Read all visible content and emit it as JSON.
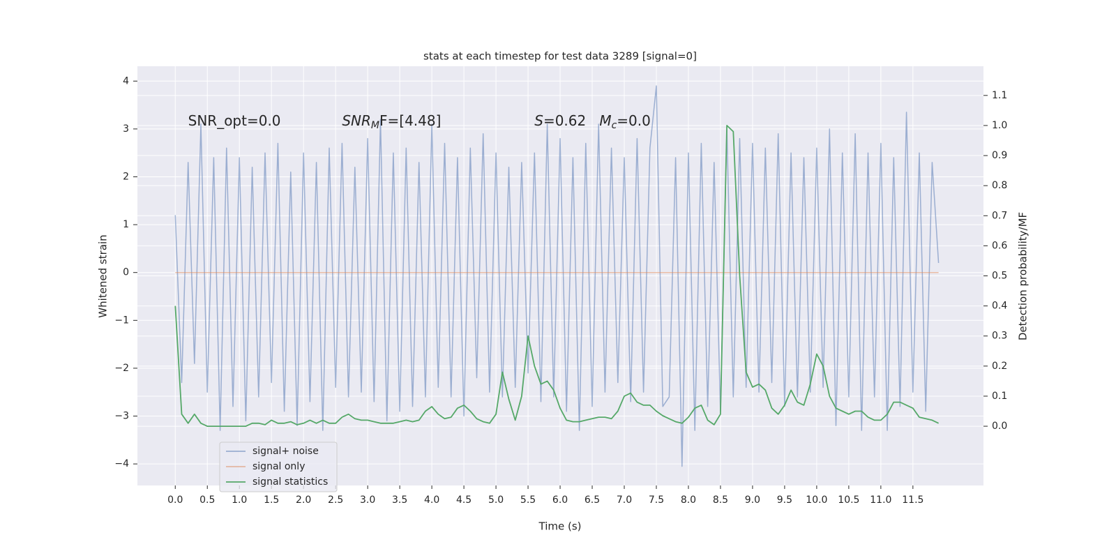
{
  "chart_data": {
    "type": "line",
    "title": "stats at each timestep for test data 3289 [signal=0]",
    "xlabel": "Time (s)",
    "ylabel": "Whitened strain",
    "y2label": "Detection probability/MF",
    "annotations": [
      [
        {
          "text": "SNR_opt=0.0"
        }
      ],
      [
        {
          "text": "SNR",
          "italic": true
        },
        {
          "text": "M",
          "italic": true,
          "sub": true
        },
        {
          "text": "F=[4.48]"
        }
      ],
      [
        {
          "text": "S",
          "italic": true
        },
        {
          "text": "=0.62   "
        },
        {
          "text": "M",
          "italic": true
        },
        {
          "text": "c",
          "italic": true,
          "sub": true
        },
        {
          "text": "=0.0"
        }
      ]
    ],
    "x": [
      0,
      0.1,
      0.2,
      0.3,
      0.4,
      0.5,
      0.6,
      0.7,
      0.8,
      0.9,
      1,
      1.1,
      1.2,
      1.3,
      1.4,
      1.5,
      1.6,
      1.7,
      1.8,
      1.9,
      2,
      2.1,
      2.2,
      2.3,
      2.4,
      2.5,
      2.6,
      2.7,
      2.8,
      2.9,
      3,
      3.1,
      3.2,
      3.3,
      3.4,
      3.5,
      3.6,
      3.7,
      3.8,
      3.9,
      4,
      4.1,
      4.2,
      4.3,
      4.4,
      4.5,
      4.6,
      4.7,
      4.8,
      4.9,
      5,
      5.1,
      5.2,
      5.3,
      5.4,
      5.5,
      5.6,
      5.7,
      5.8,
      5.9,
      6,
      6.1,
      6.2,
      6.3,
      6.4,
      6.5,
      6.6,
      6.7,
      6.8,
      6.9,
      7,
      7.1,
      7.2,
      7.3,
      7.4,
      7.5,
      7.6,
      7.7,
      7.8,
      7.9,
      8,
      8.1,
      8.2,
      8.3,
      8.4,
      8.5,
      8.6,
      8.7,
      8.8,
      8.9,
      9,
      9.1,
      9.2,
      9.3,
      9.4,
      9.5,
      9.6,
      9.7,
      9.8,
      9.9,
      10,
      10.1,
      10.2,
      10.3,
      10.4,
      10.5,
      10.6,
      10.7,
      10.8,
      10.9,
      11,
      11.1,
      11.2,
      11.3,
      11.4,
      11.5,
      11.6,
      11.7,
      11.8,
      11.9
    ],
    "series": [
      {
        "name": "signal+ noise",
        "color": "#4c72b0",
        "values": [
          1.2,
          -2.3,
          2.3,
          -1.9,
          3.1,
          -2.5,
          2.4,
          -3.3,
          2.6,
          -2.8,
          2.4,
          -3.1,
          2.2,
          -2.6,
          2.5,
          -2.3,
          2.7,
          -2.9,
          2.1,
          -3.2,
          2.5,
          -2.7,
          2.3,
          -3.3,
          2.6,
          -2.4,
          2.7,
          -2.6,
          2.2,
          -2.5,
          2.8,
          -2.7,
          3.2,
          -3.1,
          2.5,
          -2.9,
          2.6,
          -2.8,
          2.3,
          -2.6,
          3.1,
          -2.4,
          2.7,
          -2.6,
          2.4,
          -3.0,
          2.6,
          -2.2,
          2.9,
          -2.5,
          2.5,
          -2.6,
          2.2,
          -2.4,
          2.3,
          -2.1,
          2.5,
          -2.7,
          3.1,
          -2.6,
          2.8,
          -2.9,
          2.4,
          -3.3,
          2.7,
          -2.8,
          3.1,
          -2.5,
          2.6,
          -2.3,
          2.4,
          -2.7,
          2.8,
          -2.5,
          2.6,
          3.9,
          -2.8,
          -2.6,
          2.4,
          -4.05,
          2.5,
          -3.3,
          2.7,
          -2.8,
          2.3,
          -2.9,
          3.0,
          -2.6,
          2.8,
          -2.4,
          2.7,
          -2.5,
          2.6,
          -2.3,
          2.9,
          -2.8,
          2.5,
          -2.6,
          2.4,
          -2.5,
          2.6,
          -2.4,
          3.0,
          -3.2,
          2.5,
          -2.6,
          2.9,
          -3.3,
          2.5,
          -2.6,
          2.7,
          -3.3,
          2.4,
          -2.8,
          3.35,
          -2.5,
          2.5,
          -2.9,
          2.3,
          0.2
        ]
      },
      {
        "name": "signal only",
        "color": "#dd8452",
        "values": [
          0,
          0,
          0,
          0,
          0,
          0,
          0,
          0,
          0,
          0,
          0,
          0,
          0,
          0,
          0,
          0,
          0,
          0,
          0,
          0,
          0,
          0,
          0,
          0,
          0,
          0,
          0,
          0,
          0,
          0,
          0,
          0,
          0,
          0,
          0,
          0,
          0,
          0,
          0,
          0,
          0,
          0,
          0,
          0,
          0,
          0,
          0,
          0,
          0,
          0,
          0,
          0,
          0,
          0,
          0,
          0,
          0,
          0,
          0,
          0,
          0,
          0,
          0,
          0,
          0,
          0,
          0,
          0,
          0,
          0,
          0,
          0,
          0,
          0,
          0,
          0,
          0,
          0,
          0,
          0,
          0,
          0,
          0,
          0,
          0,
          0,
          0,
          0,
          0,
          0,
          0,
          0,
          0,
          0,
          0,
          0,
          0,
          0,
          0,
          0,
          0,
          0,
          0,
          0,
          0,
          0,
          0,
          0,
          0,
          0,
          0,
          0,
          0,
          0,
          0,
          0,
          0,
          0,
          0,
          0
        ]
      },
      {
        "name": "signal statistics",
        "color": "#55a868",
        "axis": "y2",
        "values": [
          0.4,
          0.04,
          0.01,
          0.04,
          0.01,
          0,
          0,
          0,
          0,
          0,
          0,
          0,
          0.01,
          0.01,
          0.005,
          0.02,
          0.01,
          0.01,
          0.015,
          0.005,
          0.01,
          0.02,
          0.01,
          0.02,
          0.01,
          0.01,
          0.03,
          0.04,
          0.025,
          0.02,
          0.02,
          0.015,
          0.01,
          0.01,
          0.01,
          0.015,
          0.02,
          0.015,
          0.02,
          0.05,
          0.065,
          0.04,
          0.025,
          0.03,
          0.06,
          0.07,
          0.05,
          0.025,
          0.015,
          0.01,
          0.04,
          0.18,
          0.09,
          0.02,
          0.1,
          0.3,
          0.2,
          0.14,
          0.15,
          0.12,
          0.06,
          0.02,
          0.015,
          0.015,
          0.02,
          0.025,
          0.03,
          0.03,
          0.025,
          0.05,
          0.1,
          0.11,
          0.08,
          0.07,
          0.07,
          0.05,
          0.035,
          0.025,
          0.015,
          0.01,
          0.03,
          0.06,
          0.07,
          0.02,
          0.005,
          0.04,
          1.0,
          0.98,
          0.5,
          0.18,
          0.13,
          0.14,
          0.12,
          0.06,
          0.04,
          0.07,
          0.12,
          0.08,
          0.07,
          0.14,
          0.24,
          0.2,
          0.1,
          0.06,
          0.05,
          0.04,
          0.05,
          0.05,
          0.03,
          0.02,
          0.02,
          0.04,
          0.08,
          0.08,
          0.07,
          0.06,
          0.03,
          0.025,
          0.02,
          0.01
        ]
      }
    ],
    "xlim": [
      -0.59,
      12.6
    ],
    "xticks": [
      {
        "value": 0,
        "label": "0.0"
      },
      {
        "value": 0.5,
        "label": "0.5"
      },
      {
        "value": 1,
        "label": "1.0"
      },
      {
        "value": 1.5,
        "label": "1.5"
      },
      {
        "value": 2,
        "label": "2.0"
      },
      {
        "value": 2.5,
        "label": "2.5"
      },
      {
        "value": 3,
        "label": "3.0"
      },
      {
        "value": 3.5,
        "label": "3.5"
      },
      {
        "value": 4,
        "label": "4.0"
      },
      {
        "value": 4.5,
        "label": "4.5"
      },
      {
        "value": 5,
        "label": "5.0"
      },
      {
        "value": 5.5,
        "label": "5.5"
      },
      {
        "value": 6,
        "label": "6.0"
      },
      {
        "value": 6.5,
        "label": "6.5"
      },
      {
        "value": 7,
        "label": "7.0"
      },
      {
        "value": 7.5,
        "label": "7.5"
      },
      {
        "value": 8,
        "label": "8.0"
      },
      {
        "value": 8.5,
        "label": "8.5"
      },
      {
        "value": 9,
        "label": "9.0"
      },
      {
        "value": 9.5,
        "label": "9.5"
      },
      {
        "value": 10,
        "label": "10.0"
      },
      {
        "value": 10.5,
        "label": "10.5"
      },
      {
        "value": 11,
        "label": "11.0"
      },
      {
        "value": 11.5,
        "label": "11.5"
      }
    ],
    "ylim": [
      -4.45,
      4.31
    ],
    "yticks": [
      {
        "value": -4,
        "label": "−4"
      },
      {
        "value": -3,
        "label": "−3"
      },
      {
        "value": -2,
        "label": "−2"
      },
      {
        "value": -1,
        "label": "−1"
      },
      0,
      1,
      2,
      3,
      4
    ],
    "y2lim": [
      -0.197,
      1.197
    ],
    "y2ticks": [
      {
        "value": 0,
        "label": "0.0"
      },
      {
        "value": 0.1,
        "label": "0.1"
      },
      {
        "value": 0.2,
        "label": "0.2"
      },
      {
        "value": 0.3,
        "label": "0.3"
      },
      {
        "value": 0.4,
        "label": "0.4"
      },
      {
        "value": 0.5,
        "label": "0.5"
      },
      {
        "value": 0.6,
        "label": "0.6"
      },
      {
        "value": 0.7,
        "label": "0.7"
      },
      {
        "value": 0.8,
        "label": "0.8"
      },
      {
        "value": 0.9,
        "label": "0.9"
      },
      {
        "value": 1,
        "label": "1.0"
      },
      {
        "value": 1.1,
        "label": "1.1"
      }
    ],
    "grid": true,
    "legend": "lower left"
  }
}
